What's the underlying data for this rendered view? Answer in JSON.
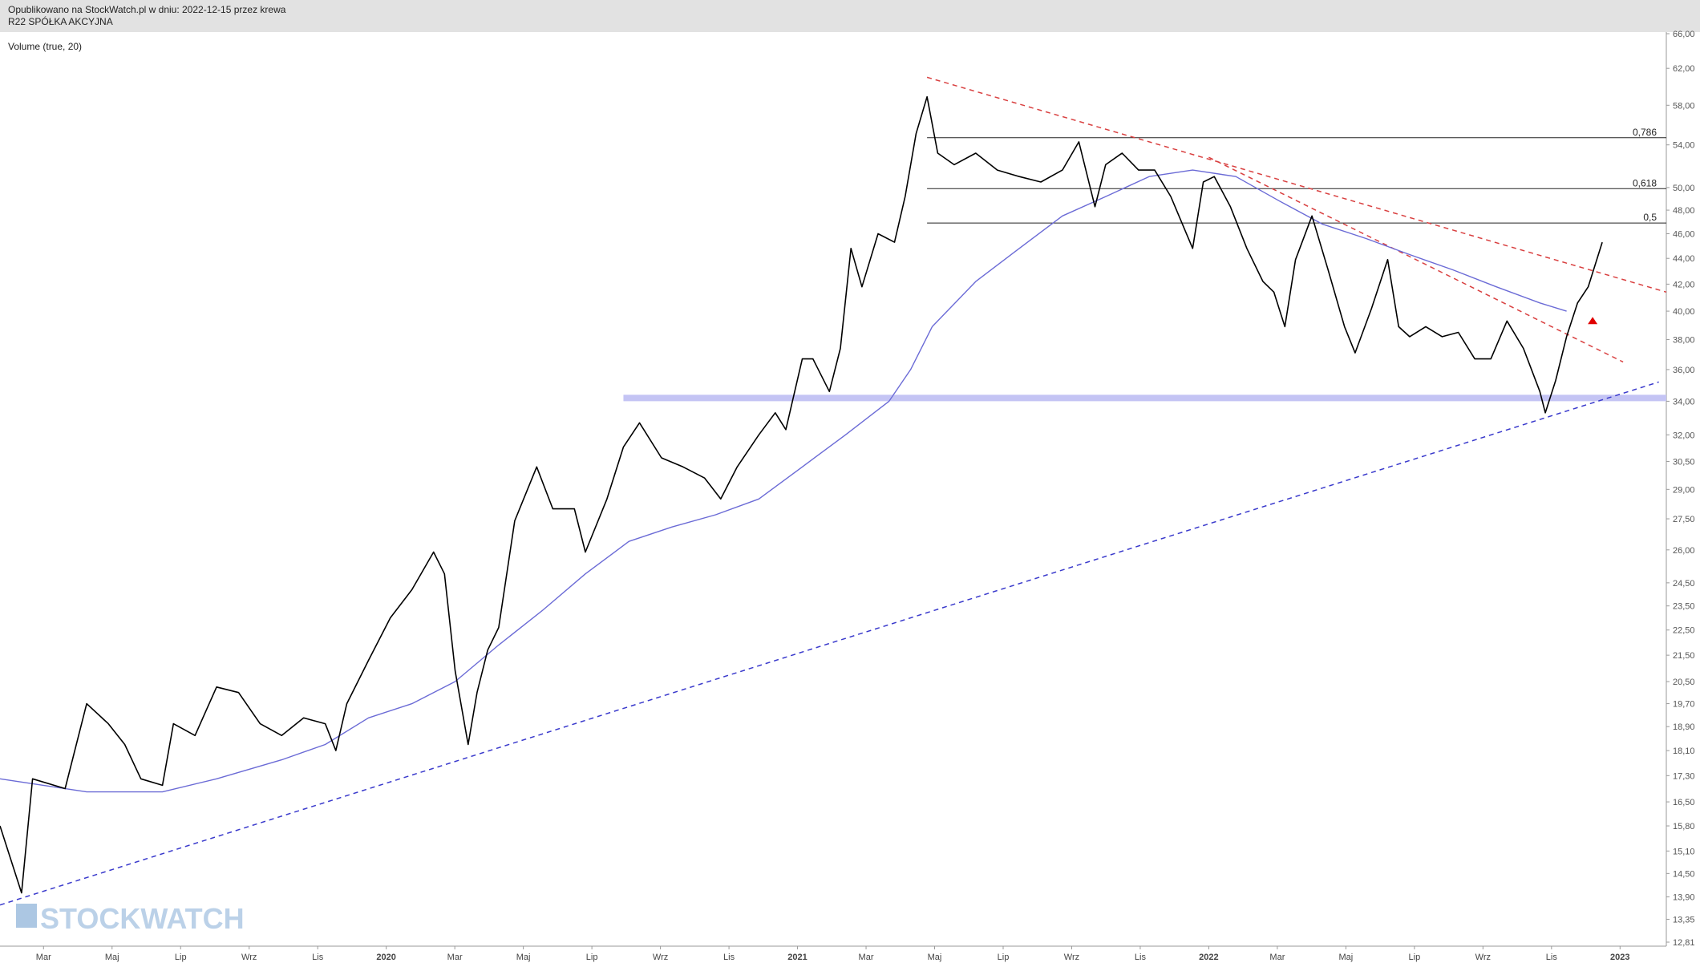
{
  "header": {
    "published": "Opublikowano na StockWatch.pl w dniu: 2022-12-15 przez krewa",
    "company": "R22 SPÓŁKA AKCYJNA"
  },
  "chart_data": {
    "type": "line",
    "indicator_label": "Volume (true, 20)",
    "watermark": "STOCKWATCH",
    "log_scale": true,
    "ylim": [
      12.81,
      66
    ],
    "yticks": [
      {
        "value": 66,
        "label": "66,00"
      },
      {
        "value": 62,
        "label": "62,00"
      },
      {
        "value": 58,
        "label": "58,00"
      },
      {
        "value": 54,
        "label": "54,00"
      },
      {
        "value": 50,
        "label": "50,00"
      },
      {
        "value": 48,
        "label": "48,00"
      },
      {
        "value": 46,
        "label": "46,00"
      },
      {
        "value": 44,
        "label": "44,00"
      },
      {
        "value": 42,
        "label": "42,00"
      },
      {
        "value": 40,
        "label": "40,00"
      },
      {
        "value": 38,
        "label": "38,00"
      },
      {
        "value": 36,
        "label": "36,00"
      },
      {
        "value": 34,
        "label": "34,00"
      },
      {
        "value": 32,
        "label": "32,00"
      },
      {
        "value": 30.5,
        "label": "30,50"
      },
      {
        "value": 29,
        "label": "29,00"
      },
      {
        "value": 27.5,
        "label": "27,50"
      },
      {
        "value": 26,
        "label": "26,00"
      },
      {
        "value": 24.5,
        "label": "24,50"
      },
      {
        "value": 23.5,
        "label": "23,50"
      },
      {
        "value": 22.5,
        "label": "22,50"
      },
      {
        "value": 21.5,
        "label": "21,50"
      },
      {
        "value": 20.5,
        "label": "20,50"
      },
      {
        "value": 19.7,
        "label": "19,70"
      },
      {
        "value": 18.9,
        "label": "18,90"
      },
      {
        "value": 18.1,
        "label": "18,10"
      },
      {
        "value": 17.3,
        "label": "17,30"
      },
      {
        "value": 16.5,
        "label": "16,50"
      },
      {
        "value": 15.8,
        "label": "15,80"
      },
      {
        "value": 15.1,
        "label": "15,10"
      },
      {
        "value": 14.5,
        "label": "14,50"
      },
      {
        "value": 13.9,
        "label": "13,90"
      },
      {
        "value": 13.35,
        "label": "13,35"
      },
      {
        "value": 12.81,
        "label": "12,81"
      }
    ],
    "xlim": [
      0.73,
      49.35
    ],
    "xticks": [
      {
        "value": 2,
        "label": "Mar"
      },
      {
        "value": 4,
        "label": "Maj"
      },
      {
        "value": 6,
        "label": "Lip"
      },
      {
        "value": 8,
        "label": "Wrz"
      },
      {
        "value": 10,
        "label": "Lis"
      },
      {
        "value": 12,
        "label": "2020"
      },
      {
        "value": 14,
        "label": "Mar"
      },
      {
        "value": 16,
        "label": "Maj"
      },
      {
        "value": 18,
        "label": "Lip"
      },
      {
        "value": 20,
        "label": "Wrz"
      },
      {
        "value": 22,
        "label": "Lis"
      },
      {
        "value": 24,
        "label": "2021"
      },
      {
        "value": 26,
        "label": "Mar"
      },
      {
        "value": 28,
        "label": "Maj"
      },
      {
        "value": 30,
        "label": "Lip"
      },
      {
        "value": 32,
        "label": "Wrz"
      },
      {
        "value": 34,
        "label": "Lis"
      },
      {
        "value": 36,
        "label": "2022"
      },
      {
        "value": 38,
        "label": "Mar"
      },
      {
        "value": 40,
        "label": "Maj"
      },
      {
        "value": 42,
        "label": "Lip"
      },
      {
        "value": 44,
        "label": "Wrz"
      },
      {
        "value": 46,
        "label": "Lis"
      },
      {
        "value": 48,
        "label": "2023"
      }
    ],
    "series": [
      {
        "color": "#000000",
        "x": [
          0.73,
          1.36,
          1.68,
          2.63,
          3.26,
          3.89,
          4.37,
          4.84,
          5.47,
          5.79,
          6.42,
          7.05,
          7.69,
          8.32,
          8.95,
          9.59,
          10.22,
          10.53,
          10.85,
          11.48,
          12.12,
          12.75,
          13.38,
          13.7,
          14.01,
          14.39,
          14.65,
          14.96,
          15.28,
          15.75,
          16.39,
          16.86,
          17.49,
          17.81,
          18.44,
          18.92,
          19.39,
          20.03,
          20.66,
          21.29,
          21.76,
          22.24,
          22.87,
          23.35,
          23.66,
          24.14,
          24.45,
          24.93,
          25.25,
          25.56,
          25.88,
          26.35,
          26.83,
          27.14,
          27.46,
          27.78,
          28.09,
          28.57,
          29.2,
          29.83,
          30.47,
          31.1,
          31.73,
          32.21,
          32.68,
          32.99,
          33.47,
          33.95,
          34.42,
          34.89,
          35.53,
          35.84,
          36.16,
          36.63,
          37.11,
          37.58,
          37.9,
          38.22,
          38.53,
          39.01,
          39.48,
          39.96,
          40.27,
          40.75,
          41.22,
          41.54,
          41.86,
          42.33,
          42.81,
          43.28,
          43.76,
          44.23,
          44.7,
          45.18,
          45.66,
          45.82,
          46.12,
          46.44,
          46.76,
          47.07,
          47.48
        ],
        "values": [
          15.8,
          14.0,
          17.2,
          16.9,
          19.7,
          19.0,
          18.3,
          17.2,
          17.0,
          19.0,
          18.6,
          20.3,
          20.1,
          19.0,
          18.6,
          19.2,
          19.0,
          18.1,
          19.7,
          21.3,
          23.0,
          24.2,
          25.9,
          24.9,
          20.9,
          18.3,
          20.1,
          21.7,
          22.6,
          27.4,
          30.2,
          28.0,
          28.0,
          25.9,
          28.5,
          31.3,
          32.7,
          30.7,
          30.2,
          29.6,
          28.5,
          30.2,
          32.0,
          33.3,
          32.3,
          36.7,
          36.7,
          34.6,
          37.4,
          44.8,
          41.8,
          46.0,
          45.3,
          49.2,
          55.1,
          58.9,
          53.2,
          52.1,
          53.2,
          51.6,
          51.0,
          50.5,
          51.6,
          54.3,
          48.3,
          52.1,
          53.2,
          51.6,
          51.6,
          49.2,
          44.8,
          50.5,
          51.0,
          48.3,
          44.8,
          42.2,
          41.4,
          38.9,
          43.9,
          47.5,
          43.1,
          38.9,
          37.1,
          40.2,
          43.9,
          38.9,
          38.2,
          38.9,
          38.2,
          38.5,
          36.7,
          36.7,
          39.3,
          37.4,
          34.6,
          33.3,
          35.3,
          38.2,
          40.6,
          41.8,
          45.3
        ]
      },
      {
        "color": "#6b6bd6",
        "x": [
          0.73,
          3.26,
          5.47,
          7.05,
          8.95,
          10.22,
          11.48,
          12.75,
          14.01,
          15.28,
          16.55,
          17.81,
          19.08,
          20.34,
          21.61,
          22.87,
          24.14,
          25.4,
          26.67,
          27.3,
          27.93,
          29.2,
          30.47,
          31.73,
          33.0,
          34.26,
          35.53,
          36.79,
          38.06,
          39.32,
          40.59,
          41.86,
          43.12,
          44.39,
          45.66,
          46.44
        ],
        "values": [
          17.2,
          16.8,
          16.8,
          17.2,
          17.8,
          18.3,
          19.2,
          19.7,
          20.5,
          21.9,
          23.3,
          24.9,
          26.4,
          27.1,
          27.7,
          28.5,
          30.2,
          32.0,
          34.0,
          36.0,
          38.9,
          42.2,
          44.8,
          47.5,
          49.2,
          51.0,
          51.6,
          51.0,
          48.8,
          46.8,
          45.6,
          44.3,
          43.1,
          41.8,
          40.6,
          40.0
        ]
      }
    ],
    "levels": [
      {
        "value": 54.7,
        "label": "0,786",
        "from": 27.78
      },
      {
        "value": 49.9,
        "label": "0,618",
        "from": 27.78
      },
      {
        "value": 46.9,
        "label": "0,5",
        "from": 27.78
      }
    ],
    "band": {
      "value": 34.2,
      "from": 18.92,
      "color": "#c4c4f4"
    },
    "trendlines": [
      {
        "color": "#d94040",
        "x": [
          27.78,
          49.35
        ],
        "values": [
          61,
          41.4
        ]
      },
      {
        "color": "#d94040",
        "x": [
          36.0,
          48.09
        ],
        "values": [
          52.8,
          36.5
        ]
      },
      {
        "color": "#3a3acc",
        "x": [
          0.73,
          49.13
        ],
        "values": [
          13.7,
          35.2
        ]
      }
    ],
    "marker": {
      "x": 47.2,
      "value": 39.3,
      "color": "#e00000"
    }
  }
}
